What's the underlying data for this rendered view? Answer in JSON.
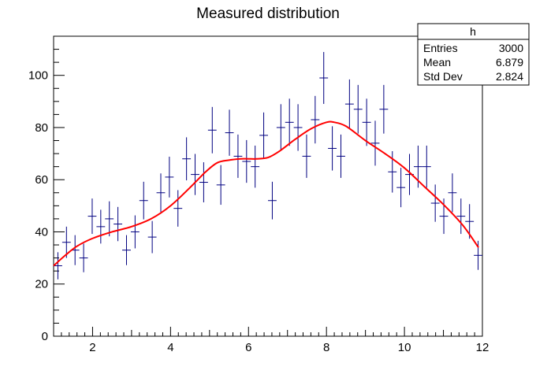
{
  "chart_data": {
    "type": "histogram",
    "title": "Measured distribution",
    "xlabel": "",
    "ylabel": "",
    "xlim": [
      1,
      12
    ],
    "ylim": [
      0,
      115
    ],
    "x_ticks": [
      2,
      4,
      6,
      8,
      10,
      12
    ],
    "y_ticks": [
      0,
      20,
      40,
      60,
      80,
      100
    ],
    "grid": false,
    "series": [
      {
        "kind": "points-with-errors",
        "color": "#000080",
        "bin_width": 0.22,
        "x": [
          1.11,
          1.33,
          1.55,
          1.77,
          1.99,
          2.21,
          2.43,
          2.65,
          2.87,
          3.09,
          3.31,
          3.53,
          3.75,
          3.97,
          4.19,
          4.41,
          4.63,
          4.85,
          5.07,
          5.29,
          5.51,
          5.73,
          5.95,
          6.17,
          6.39,
          6.61,
          6.83,
          7.05,
          7.27,
          7.49,
          7.71,
          7.93,
          8.15,
          8.37,
          8.59,
          8.81,
          9.03,
          9.25,
          9.47,
          9.69,
          9.91,
          10.13,
          10.35,
          10.57,
          10.79,
          11.01,
          11.23,
          11.45,
          11.67,
          11.89
        ],
        "y": [
          27,
          36,
          33,
          30,
          46,
          42,
          45,
          43,
          33,
          40,
          52,
          38,
          55,
          61,
          49,
          68,
          62,
          59,
          79,
          58,
          78,
          69,
          67,
          65,
          77,
          52,
          80,
          82,
          80,
          69,
          83,
          99,
          72,
          69,
          89,
          87,
          82,
          74,
          87,
          63,
          57,
          62,
          65,
          65,
          51,
          46,
          55,
          46,
          44,
          31
        ]
      },
      {
        "kind": "fit-curve",
        "color": "#ff0000",
        "x": [
          1.0,
          1.3,
          1.6,
          2.0,
          2.5,
          3.0,
          3.5,
          4.0,
          4.5,
          4.9,
          5.2,
          5.5,
          5.8,
          6.0,
          6.2,
          6.5,
          6.8,
          7.2,
          7.6,
          8.0,
          8.2,
          8.5,
          9.0,
          9.5,
          10.0,
          10.5,
          11.0,
          11.5,
          11.9
        ],
        "y": [
          27,
          31,
          34.5,
          37.5,
          40,
          42,
          45,
          50,
          57,
          63,
          66.5,
          67.5,
          68,
          68,
          68,
          68.5,
          71,
          75.5,
          79.5,
          82,
          82,
          80.5,
          75,
          70,
          64.5,
          57.5,
          50.5,
          42.5,
          34
        ]
      }
    ],
    "stats_box": {
      "title": "h",
      "rows": [
        {
          "label": "Entries",
          "value": "3000"
        },
        {
          "label": "Mean",
          "value": "6.879"
        },
        {
          "label": "Std Dev",
          "value": "2.824"
        }
      ]
    }
  }
}
